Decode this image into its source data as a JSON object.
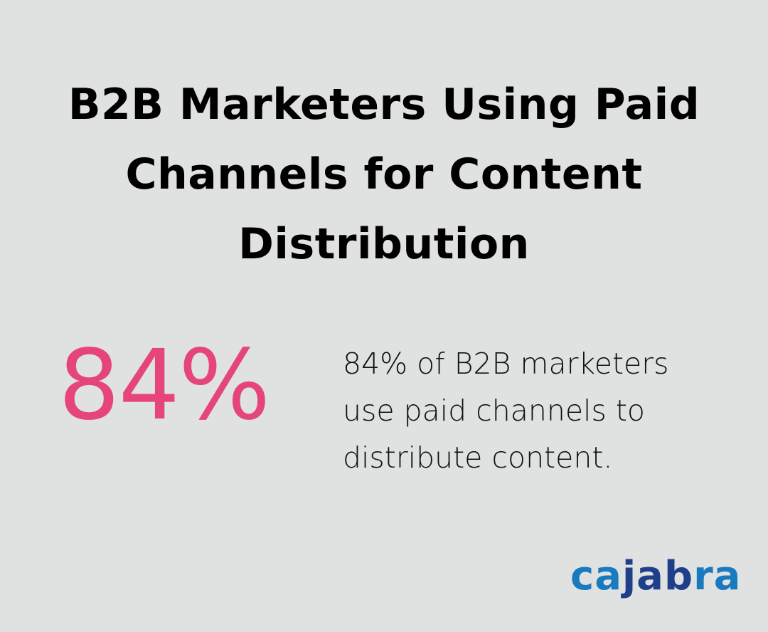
{
  "title": "B2B Marketers Using Paid Channels for Content Distribution",
  "stat": {
    "value": "84%",
    "color": "#e6457a"
  },
  "description": "84% of B2B marketers use paid channels to distribute content.",
  "logo": {
    "text": "cajabra",
    "part1": "ca",
    "part2": "jab",
    "part3": "ra",
    "colors": {
      "light": "#1a7abf",
      "dark": "#1f3f8a"
    }
  },
  "background": "#e0e2e1"
}
